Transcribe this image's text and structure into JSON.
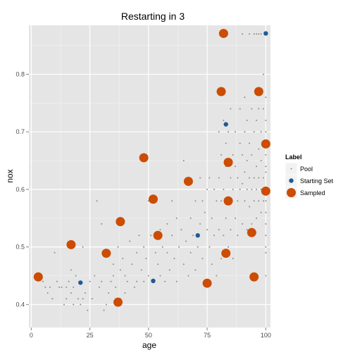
{
  "chart_data": {
    "type": "scatter",
    "title": "Restarting in  3",
    "xlabel": "age",
    "ylabel": "nox",
    "xlim": [
      -1,
      102
    ],
    "ylim": [
      0.36,
      0.885
    ],
    "xticks": [
      0,
      25,
      50,
      75,
      100
    ],
    "yticks": [
      0.4,
      0.5,
      0.6,
      0.7,
      0.8
    ],
    "ytick_labels": [
      "0.4",
      "0.5",
      "0.6",
      "0.7",
      "0.8"
    ],
    "grid": true,
    "legend": {
      "title": "Label",
      "placement": "right",
      "entries": [
        "Pool",
        "Starting Set",
        "Sampled"
      ]
    },
    "colors": {
      "panel": "#e5e5e5",
      "grid_major": "#ffffff",
      "grid_minor": "#f2f2f2",
      "pool": "#8c8c8c",
      "starting_set": "#1f5a96",
      "sampled": "#cc4c02",
      "legend_key_bg": "#f2f2f2"
    },
    "series": [
      {
        "name": "Pool",
        "marker": "small-point",
        "points": [
          [
            5,
            0.44
          ],
          [
            6,
            0.43
          ],
          [
            7,
            0.42
          ],
          [
            8,
            0.43
          ],
          [
            9,
            0.41
          ],
          [
            10,
            0.49
          ],
          [
            11,
            0.44
          ],
          [
            12,
            0.43
          ],
          [
            13,
            0.43
          ],
          [
            14,
            0.4
          ],
          [
            15,
            0.43
          ],
          [
            15,
            0.41
          ],
          [
            16,
            0.44
          ],
          [
            17,
            0.42
          ],
          [
            17,
            0.46
          ],
          [
            18,
            0.4
          ],
          [
            18,
            0.43
          ],
          [
            19,
            0.45
          ],
          [
            20,
            0.41
          ],
          [
            21,
            0.4
          ],
          [
            22,
            0.41
          ],
          [
            22,
            0.5
          ],
          [
            23,
            0.42
          ],
          [
            24,
            0.39
          ],
          [
            25,
            0.44
          ],
          [
            26,
            0.41
          ],
          [
            27,
            0.45
          ],
          [
            28,
            0.58
          ],
          [
            29,
            0.43
          ],
          [
            30,
            0.44
          ],
          [
            30,
            0.54
          ],
          [
            31,
            0.39
          ],
          [
            32,
            0.4
          ],
          [
            33,
            0.42
          ],
          [
            34,
            0.44
          ],
          [
            35,
            0.45
          ],
          [
            35,
            0.47
          ],
          [
            36,
            0.43
          ],
          [
            37,
            0.5
          ],
          [
            38,
            0.46
          ],
          [
            38,
            0.41
          ],
          [
            39,
            0.48
          ],
          [
            40,
            0.42
          ],
          [
            40,
            0.45
          ],
          [
            41,
            0.44
          ],
          [
            42,
            0.51
          ],
          [
            43,
            0.47
          ],
          [
            44,
            0.43
          ],
          [
            45,
            0.49
          ],
          [
            45,
            0.44
          ],
          [
            46,
            0.52
          ],
          [
            47,
            0.46
          ],
          [
            48,
            0.44
          ],
          [
            48,
            0.5
          ],
          [
            49,
            0.48
          ],
          [
            50,
            0.45
          ],
          [
            50,
            0.58
          ],
          [
            51,
            0.52
          ],
          [
            52,
            0.44
          ],
          [
            53,
            0.49
          ],
          [
            54,
            0.47
          ],
          [
            55,
            0.53
          ],
          [
            55,
            0.45
          ],
          [
            56,
            0.5
          ],
          [
            57,
            0.44
          ],
          [
            58,
            0.54
          ],
          [
            58,
            0.49
          ],
          [
            59,
            0.46
          ],
          [
            60,
            0.52
          ],
          [
            60,
            0.58
          ],
          [
            61,
            0.48
          ],
          [
            62,
            0.55
          ],
          [
            62,
            0.44
          ],
          [
            63,
            0.5
          ],
          [
            64,
            0.53
          ],
          [
            65,
            0.47
          ],
          [
            65,
            0.65
          ],
          [
            66,
            0.51
          ],
          [
            67,
            0.45
          ],
          [
            68,
            0.55
          ],
          [
            68,
            0.49
          ],
          [
            69,
            0.52
          ],
          [
            70,
            0.58
          ],
          [
            70,
            0.46
          ],
          [
            71,
            0.5
          ],
          [
            72,
            0.54
          ],
          [
            72,
            0.62
          ],
          [
            73,
            0.48
          ],
          [
            73,
            0.58
          ],
          [
            74,
            0.56
          ],
          [
            75,
            0.53
          ],
          [
            75,
            0.6
          ],
          [
            76,
            0.5
          ],
          [
            76,
            0.62
          ],
          [
            77,
            0.55
          ],
          [
            77,
            0.47
          ],
          [
            78,
            0.6
          ],
          [
            78,
            0.52
          ],
          [
            79,
            0.58
          ],
          [
            79,
            0.45
          ],
          [
            80,
            0.62
          ],
          [
            80,
            0.53
          ],
          [
            80,
            0.7
          ],
          [
            81,
            0.48
          ],
          [
            81,
            0.58
          ],
          [
            81,
            0.66
          ],
          [
            82,
            0.52
          ],
          [
            82,
            0.6
          ],
          [
            82,
            0.72
          ],
          [
            83,
            0.55
          ],
          [
            83,
            0.64
          ],
          [
            83,
            0.68
          ],
          [
            84,
            0.5
          ],
          [
            84,
            0.58
          ],
          [
            84,
            0.7
          ],
          [
            85,
            0.62
          ],
          [
            85,
            0.53
          ],
          [
            85,
            0.74
          ],
          [
            86,
            0.6
          ],
          [
            86,
            0.66
          ],
          [
            86,
            0.48
          ],
          [
            87,
            0.55
          ],
          [
            87,
            0.64
          ],
          [
            87,
            0.7
          ],
          [
            88,
            0.58
          ],
          [
            88,
            0.62
          ],
          [
            88,
            0.52
          ],
          [
            89,
            0.6
          ],
          [
            89,
            0.68
          ],
          [
            89,
            0.74
          ],
          [
            90,
            0.54
          ],
          [
            90,
            0.61
          ],
          [
            90,
            0.66
          ],
          [
            90,
            0.87
          ],
          [
            91,
            0.58
          ],
          [
            91,
            0.63
          ],
          [
            91,
            0.7
          ],
          [
            91,
            0.76
          ],
          [
            92,
            0.53
          ],
          [
            92,
            0.6
          ],
          [
            92,
            0.65
          ],
          [
            92,
            0.72
          ],
          [
            93,
            0.57
          ],
          [
            93,
            0.62
          ],
          [
            93,
            0.68
          ],
          [
            93,
            0.87
          ],
          [
            94,
            0.54
          ],
          [
            94,
            0.6
          ],
          [
            94,
            0.66
          ],
          [
            94,
            0.74
          ],
          [
            95,
            0.58
          ],
          [
            95,
            0.62
          ],
          [
            95,
            0.7
          ],
          [
            95,
            0.87
          ],
          [
            96,
            0.55
          ],
          [
            96,
            0.6
          ],
          [
            96,
            0.64
          ],
          [
            96,
            0.72
          ],
          [
            96,
            0.87
          ],
          [
            97,
            0.58
          ],
          [
            97,
            0.62
          ],
          [
            97,
            0.67
          ],
          [
            97,
            0.74
          ],
          [
            97,
            0.87
          ],
          [
            98,
            0.56
          ],
          [
            98,
            0.6
          ],
          [
            98,
            0.65
          ],
          [
            98,
            0.7
          ],
          [
            98,
            0.87
          ],
          [
            99,
            0.58
          ],
          [
            99,
            0.62
          ],
          [
            99,
            0.68
          ],
          [
            99,
            0.74
          ],
          [
            99,
            0.8
          ],
          [
            100,
            0.54
          ],
          [
            100,
            0.6
          ],
          [
            100,
            0.66
          ],
          [
            100,
            0.7
          ],
          [
            100,
            0.76
          ],
          [
            100,
            0.87
          ],
          [
            100,
            0.45
          ],
          [
            100,
            0.49
          ],
          [
            100,
            0.52
          ],
          [
            100,
            0.58
          ],
          [
            100,
            0.63
          ],
          [
            100,
            0.68
          ],
          [
            100,
            0.72
          ],
          [
            100,
            0.64
          ],
          [
            100,
            0.56
          ],
          [
            100,
            0.5
          ]
        ]
      },
      {
        "name": "Starting Set",
        "marker": "point",
        "points": [
          [
            21,
            0.438
          ],
          [
            52,
            0.441
          ],
          [
            71,
            0.52
          ],
          [
            83,
            0.713
          ],
          [
            100,
            0.871
          ]
        ]
      },
      {
        "name": "Sampled",
        "marker": "large-point",
        "points": [
          [
            3,
            0.448
          ],
          [
            17,
            0.504
          ],
          [
            32,
            0.489
          ],
          [
            37,
            0.404
          ],
          [
            38,
            0.544
          ],
          [
            48,
            0.655
          ],
          [
            52,
            0.583
          ],
          [
            54,
            0.52
          ],
          [
            67,
            0.614
          ],
          [
            75,
            0.437
          ],
          [
            81,
            0.77
          ],
          [
            82,
            0.871
          ],
          [
            83,
            0.489
          ],
          [
            84,
            0.58
          ],
          [
            84,
            0.647
          ],
          [
            94,
            0.525
          ],
          [
            95,
            0.448
          ],
          [
            97,
            0.77
          ],
          [
            100,
            0.679
          ],
          [
            100,
            0.597
          ]
        ]
      }
    ]
  }
}
